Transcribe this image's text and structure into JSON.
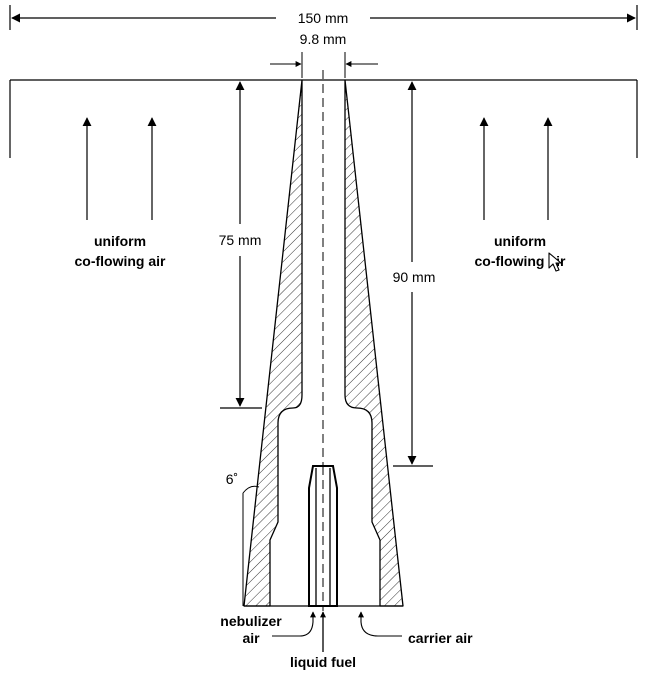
{
  "dimensions": {
    "overall_width": "150 mm",
    "exit_diameter": "9.8 mm",
    "inner_length": "75 mm",
    "outer_length": "90 mm",
    "taper_angle": "6˚"
  },
  "labels": {
    "left_air_line1": "uniform",
    "left_air_line2": "co-flowing air",
    "right_air_line1": "uniform",
    "right_air_line2": "co-flowing air",
    "nebulizer_line1": "nebulizer",
    "nebulizer_line2": "air",
    "carrier_air": "carrier air",
    "liquid_fuel": "liquid fuel"
  },
  "icons": {
    "cursor": "mouse-pointer-icon"
  },
  "colors": {
    "ink": "#000000",
    "background": "#ffffff"
  }
}
